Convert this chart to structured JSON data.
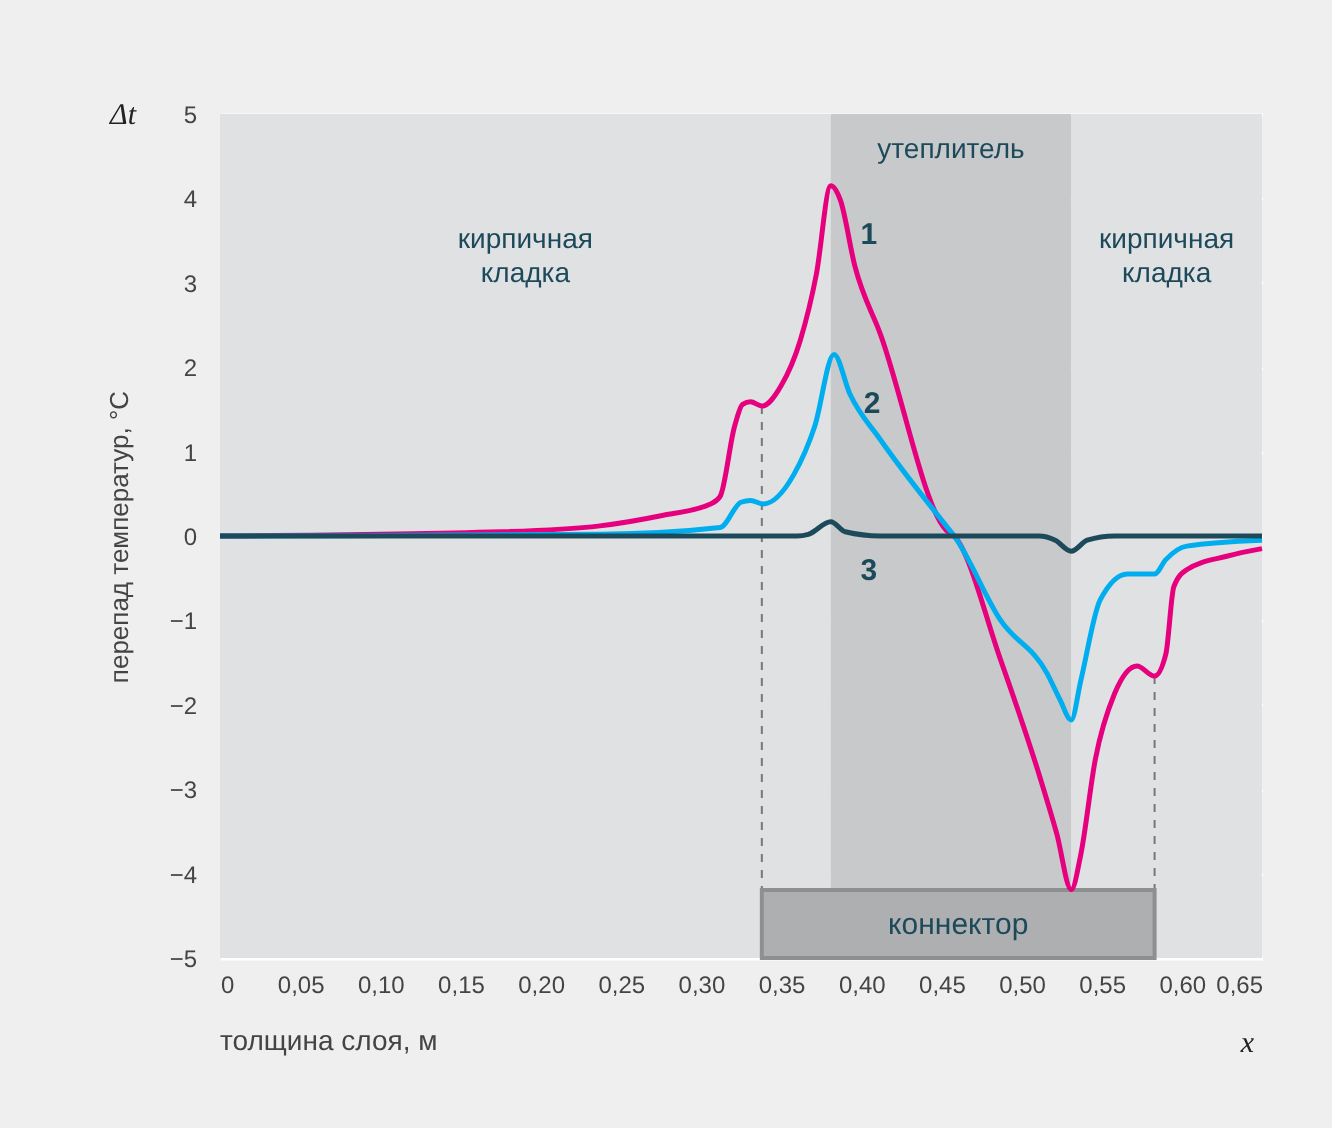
{
  "chart_data": {
    "type": "line",
    "xlabel": "толщина слоя, м",
    "ylabel": "перепад температур, °C",
    "annotations": [
      "Δt",
      "x"
    ],
    "xlim": [
      0,
      0.65
    ],
    "ylim": [
      -5,
      5
    ],
    "xticks": [
      0,
      {
        "value": 0.05,
        "label": "0,05"
      },
      {
        "value": 0.1,
        "label": "0,10"
      },
      {
        "value": 0.15,
        "label": "0,15"
      },
      {
        "value": 0.2,
        "label": "0,20"
      },
      {
        "value": 0.25,
        "label": "0,25"
      },
      {
        "value": 0.3,
        "label": "0,30"
      },
      {
        "value": 0.35,
        "label": "0,35"
      },
      {
        "value": 0.4,
        "label": "0,40"
      },
      {
        "value": 0.45,
        "label": "0,45"
      },
      {
        "value": 0.5,
        "label": "0,50"
      },
      {
        "value": 0.55,
        "label": "0,55"
      },
      {
        "value": 0.6,
        "label": "0,60"
      },
      {
        "value": 0.65,
        "label": "0,65"
      }
    ],
    "yticks": [
      {
        "value": -5,
        "label": "−5"
      },
      {
        "value": -4,
        "label": "−4"
      },
      {
        "value": -3,
        "label": "−3"
      },
      {
        "value": -2,
        "label": "−2"
      },
      {
        "value": -1,
        "label": "−1"
      },
      0,
      1,
      2,
      3,
      4,
      5
    ],
    "grid": "y",
    "legend": false,
    "marker": "none",
    "line_style": "solid",
    "bands": [
      {
        "axis": "x",
        "from": 0,
        "to": 0.381,
        "label": "кирпичная кладка",
        "color": "#e0e1e3"
      },
      {
        "axis": "x",
        "from": 0.381,
        "to": 0.531,
        "label": "утеплитель",
        "color": "#c8c9cb"
      },
      {
        "axis": "x",
        "from": 0.531,
        "to": 0.65,
        "label": "кирпичная кладка",
        "color": "#e0e1e3"
      },
      {
        "axis": "x",
        "from": 0.338,
        "to": 0.583,
        "label": "коннектор",
        "color": "#aeafb1"
      }
    ],
    "ref_lines": [
      {
        "axis": "x",
        "value": 0.338,
        "color": "#777777",
        "line_style": "dashed"
      },
      {
        "axis": "x",
        "value": 0.583,
        "color": "#777777",
        "line_style": "dashed"
      }
    ],
    "series": [
      {
        "name": "1",
        "color": "#e6007e",
        "x": [
          0,
          0.175,
          0.237,
          0.275,
          0.306,
          0.312,
          0.321,
          0.326,
          0.331,
          0.338,
          0.35,
          0.362,
          0.372,
          0.381,
          0.387,
          0.396,
          0.412,
          0.453,
          0.458,
          0.487,
          0.512,
          0.522,
          0.531,
          0.537,
          0.546,
          0.558,
          0.572,
          0.583,
          0.59,
          0.595,
          0.603,
          0.628,
          0.65
        ],
        "values": [
          0,
          0.05,
          0.12,
          0.24,
          0.38,
          0.47,
          1.3,
          1.56,
          1.59,
          1.54,
          1.78,
          2.32,
          3.1,
          4.15,
          3.98,
          3.2,
          2.39,
          0.07,
          0,
          -1.47,
          -2.89,
          -3.53,
          -4.19,
          -3.77,
          -2.65,
          -1.87,
          -1.54,
          -1.66,
          -1.4,
          -0.6,
          -0.4,
          -0.24,
          -0.15
        ]
      },
      {
        "name": "2",
        "color": "#00aeef",
        "x": [
          0,
          0.237,
          0.312,
          0.325,
          0.331,
          0.339,
          0.358,
          0.371,
          0.383,
          0.393,
          0.412,
          0.453,
          0.458,
          0.487,
          0.516,
          0.524,
          0.531,
          0.537,
          0.549,
          0.566,
          0.583,
          0.59,
          0.603,
          0.65
        ],
        "values": [
          0,
          0.02,
          0.1,
          0.4,
          0.42,
          0.38,
          0.73,
          1.3,
          2.15,
          1.68,
          1.14,
          0.12,
          0,
          -1.0,
          -1.63,
          -1.94,
          -2.18,
          -1.71,
          -0.76,
          -0.45,
          -0.45,
          -0.28,
          -0.12,
          -0.05
        ]
      },
      {
        "name": "3",
        "color": "#1d4a5a",
        "x": [
          0,
          0.36,
          0.367,
          0.381,
          0.39,
          0.412,
          0.511,
          0.521,
          0.531,
          0.541,
          0.558,
          0.65
        ],
        "values": [
          0,
          0,
          0.02,
          0.17,
          0.05,
          0,
          0,
          -0.05,
          -0.18,
          -0.05,
          0,
          0
        ]
      }
    ]
  }
}
